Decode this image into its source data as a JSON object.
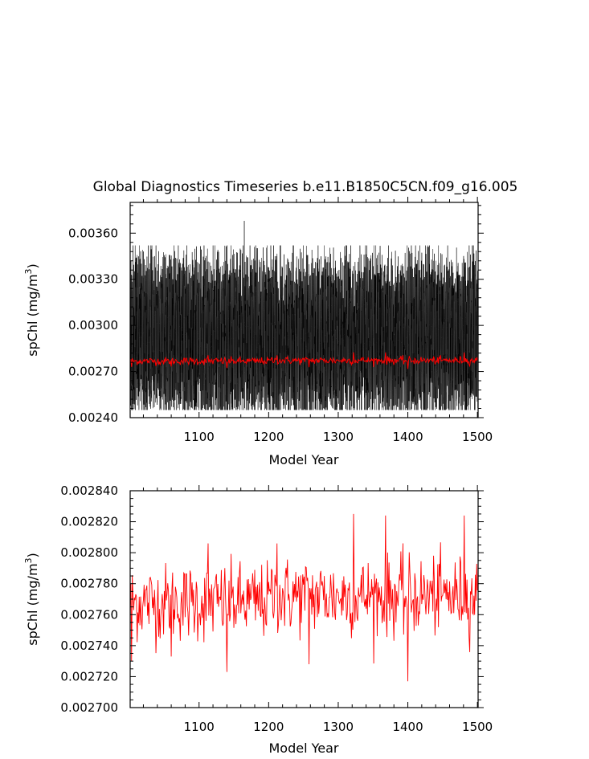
{
  "figure_title": "Global Diagnostics Timeseries b.e11.B1850C5CN.f09_g16.005",
  "colors": {
    "monthly": "#000000",
    "annual": "#ff0000",
    "axes": "#000000"
  },
  "chart_data": [
    {
      "type": "line",
      "title": "Global Diagnostics Timeseries b.e11.B1850C5CN.f09_g16.005",
      "xlabel": "Model Year",
      "ylabel": "spChl (mg/m",
      "ylabel_superscript": "3",
      "ylabel_suffix": ")",
      "xlim": [
        1001,
        1501
      ],
      "ylim": [
        0.0024,
        0.0038
      ],
      "xticks": [
        1100,
        1200,
        1300,
        1400,
        1500
      ],
      "xtick_labels": [
        "1100",
        "1200",
        "1300",
        "1400",
        "1500"
      ],
      "yticks": [
        0.0024,
        0.0027,
        0.003,
        0.0033,
        0.0036
      ],
      "ytick_labels": [
        "0.00240",
        "0.00270",
        "0.00300",
        "0.00330",
        "0.00360"
      ],
      "grid": false,
      "series": [
        {
          "color": "black",
          "description_stats": {
            "x_start": 1001,
            "x_end": 1501,
            "points_per_year": 12,
            "typical_min": 0.00248,
            "typical_max": 0.00345,
            "peak": 0.00368,
            "peak_x": 1165
          }
        },
        {
          "color": "red",
          "description_stats": {
            "x_start": 1001,
            "x_end": 1501,
            "mean": 0.002768,
            "min": 0.00272,
            "max": 0.002826
          }
        }
      ]
    },
    {
      "type": "line",
      "title": "",
      "xlabel": "Model Year",
      "ylabel": "spChl (mg/m",
      "ylabel_superscript": "3",
      "ylabel_suffix": ")",
      "xlim": [
        1001,
        1501
      ],
      "ylim": [
        0.0027,
        0.00284
      ],
      "xticks": [
        1100,
        1200,
        1300,
        1400,
        1500
      ],
      "xtick_labels": [
        "1100",
        "1200",
        "1300",
        "1400",
        "1500"
      ],
      "yticks": [
        0.0027,
        0.00272,
        0.00274,
        0.00276,
        0.00278,
        0.0028,
        0.00282,
        0.00284
      ],
      "ytick_labels": [
        "0.002700",
        "0.002720",
        "0.002740",
        "0.002760",
        "0.002780",
        "0.002800",
        "0.002820",
        "0.002840"
      ],
      "grid": false,
      "series": [
        {
          "color": "red",
          "key_points": [
            {
              "x": 1003,
              "y": 0.00273
            },
            {
              "x": 1060,
              "y": 0.002733
            },
            {
              "x": 1113,
              "y": 0.002806
            },
            {
              "x": 1140,
              "y": 0.002723
            },
            {
              "x": 1212,
              "y": 0.002806
            },
            {
              "x": 1258,
              "y": 0.002728
            },
            {
              "x": 1322,
              "y": 0.002825
            },
            {
              "x": 1368,
              "y": 0.002824
            },
            {
              "x": 1400,
              "y": 0.002717
            },
            {
              "x": 1481,
              "y": 0.002824
            }
          ],
          "mean": 0.002768
        }
      ]
    }
  ]
}
